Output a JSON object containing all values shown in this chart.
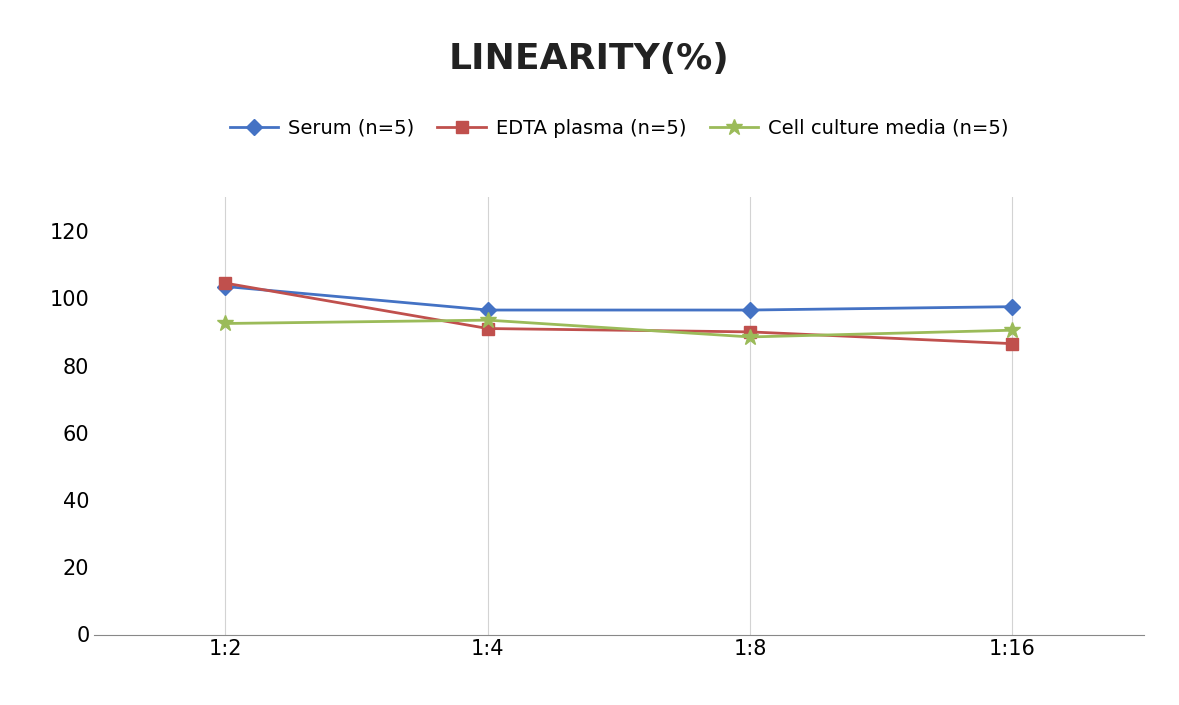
{
  "title": "LINEARITY(%)",
  "x_labels": [
    "1:2",
    "1:4",
    "1:8",
    "1:16"
  ],
  "x_positions": [
    0,
    1,
    2,
    3
  ],
  "series": [
    {
      "label": "Serum (n=5)",
      "values": [
        103.5,
        96.5,
        96.5,
        97.5
      ],
      "color": "#4472C4",
      "marker": "D",
      "marker_size": 8,
      "linewidth": 2
    },
    {
      "label": "EDTA plasma (n=5)",
      "values": [
        104.5,
        91.0,
        90.0,
        86.5
      ],
      "color": "#C0504D",
      "marker": "s",
      "marker_size": 8,
      "linewidth": 2
    },
    {
      "label": "Cell culture media (n=5)",
      "values": [
        92.5,
        93.5,
        88.5,
        90.5
      ],
      "color": "#9BBB59",
      "marker": "*",
      "marker_size": 12,
      "linewidth": 2
    }
  ],
  "ylim": [
    0,
    130
  ],
  "yticks": [
    0,
    20,
    40,
    60,
    80,
    100,
    120
  ],
  "background_color": "#FFFFFF",
  "grid_color": "#D3D3D3",
  "title_fontsize": 26,
  "tick_fontsize": 15,
  "legend_fontsize": 14
}
